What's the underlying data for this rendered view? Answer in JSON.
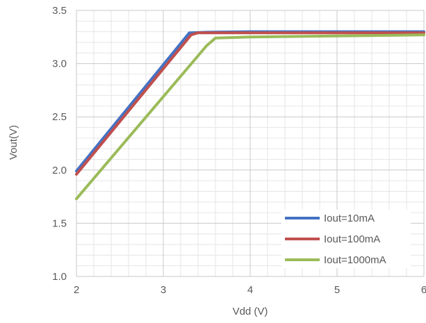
{
  "chart_data": {
    "type": "line",
    "title": "",
    "xlabel": "Vdd (V)",
    "ylabel": "Vout(V)",
    "xlim": [
      2,
      6
    ],
    "ylim": [
      1.0,
      3.5
    ],
    "x_ticks": [
      "2",
      "3",
      "4",
      "5",
      "6"
    ],
    "y_ticks": [
      "1.0",
      "1.5",
      "2.0",
      "2.5",
      "3.0",
      "3.5"
    ],
    "grid": {
      "major": true,
      "minor": true
    },
    "legend_position": "bottom-right",
    "series": [
      {
        "name": "Iout=10mA",
        "color": "#4472C4",
        "points": [
          [
            2.0,
            1.99
          ],
          [
            3.3,
            3.29
          ],
          [
            3.5,
            3.295
          ],
          [
            4.0,
            3.3
          ],
          [
            5.0,
            3.3
          ],
          [
            6.0,
            3.3
          ]
        ]
      },
      {
        "name": "Iout=100mA",
        "color": "#C0504D",
        "points": [
          [
            2.0,
            1.96
          ],
          [
            3.32,
            3.27
          ],
          [
            3.4,
            3.29
          ],
          [
            4.0,
            3.29
          ],
          [
            5.0,
            3.29
          ],
          [
            6.0,
            3.29
          ]
        ]
      },
      {
        "name": "Iout=1000mA",
        "color": "#9BBB59",
        "points": [
          [
            2.0,
            1.73
          ],
          [
            3.5,
            3.17
          ],
          [
            3.6,
            3.24
          ],
          [
            4.0,
            3.25
          ],
          [
            5.0,
            3.26
          ],
          [
            6.0,
            3.27
          ]
        ]
      }
    ]
  }
}
